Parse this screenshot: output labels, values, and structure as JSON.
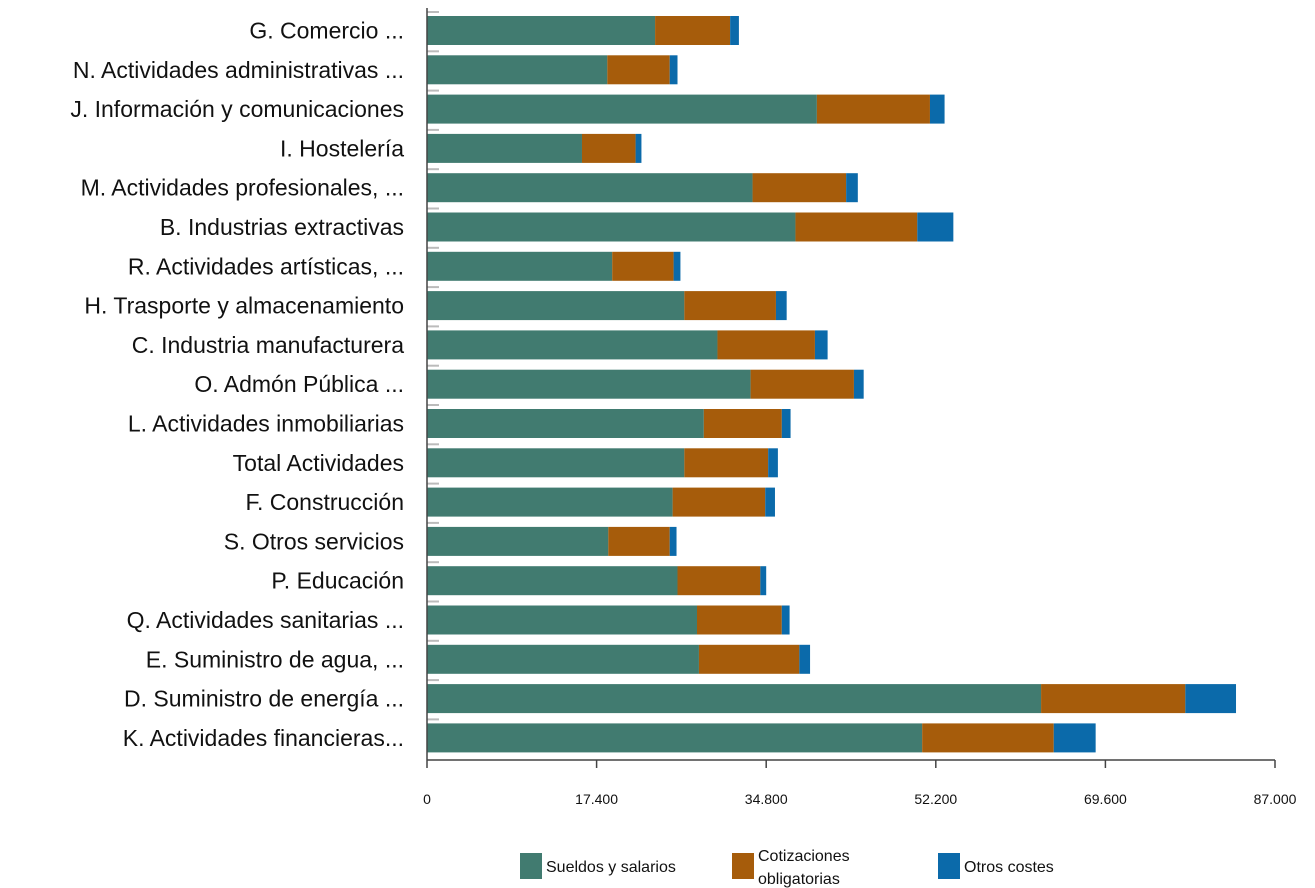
{
  "chart_data": {
    "type": "bar",
    "orientation": "horizontal",
    "stacked": true,
    "categories": [
      "G. Comercio ...",
      "N. Actividades administrativas ...",
      "J. Información y comunicaciones",
      "I. Hostelería",
      "M. Actividades profesionales, ...",
      "B. Industrias extractivas",
      "R. Actividades artísticas, ...",
      "H. Trasporte y almacenamiento",
      "C. Industria manufacturera",
      "O. Admón Pública ...",
      "L. Actividades inmobiliarias",
      "Total Actividades",
      "F. Construcción",
      "S. Otros servicios",
      "P. Educación",
      "Q. Actividades sanitarias ...",
      "E. Suministro de agua, ...",
      "D. Suministro de energía ...",
      "K. Actividades financieras..."
    ],
    "series": [
      {
        "name": "Sueldos y salarios",
        "color": "#417b70",
        "values": [
          23400,
          18500,
          40000,
          15900,
          33400,
          37800,
          19000,
          26400,
          29800,
          33200,
          28400,
          26400,
          25200,
          18600,
          25700,
          27700,
          27900,
          63000,
          50800
        ]
      },
      {
        "name": "Cotizaciones obligatorias",
        "color": "#a65c0b",
        "values": [
          7700,
          6400,
          11600,
          5500,
          9600,
          12500,
          6300,
          9400,
          10000,
          10600,
          8000,
          8600,
          9500,
          6300,
          8500,
          8700,
          10300,
          14800,
          13500
        ]
      },
      {
        "name": "Otros costes",
        "color": "#0b6aaa",
        "values": [
          900,
          800,
          1500,
          600,
          1200,
          3700,
          700,
          1100,
          1300,
          1000,
          900,
          1000,
          1000,
          700,
          600,
          800,
          1100,
          5200,
          4300
        ]
      }
    ],
    "xlim": [
      0,
      87000
    ],
    "xticks": [
      "0",
      "17.400",
      "34.800",
      "52.200",
      "69.600",
      "87.000"
    ],
    "legend_position": "bottom",
    "legend": [
      "Sueldos y salarios",
      "Cotizaciones obligatorias",
      "Otros costes"
    ]
  }
}
